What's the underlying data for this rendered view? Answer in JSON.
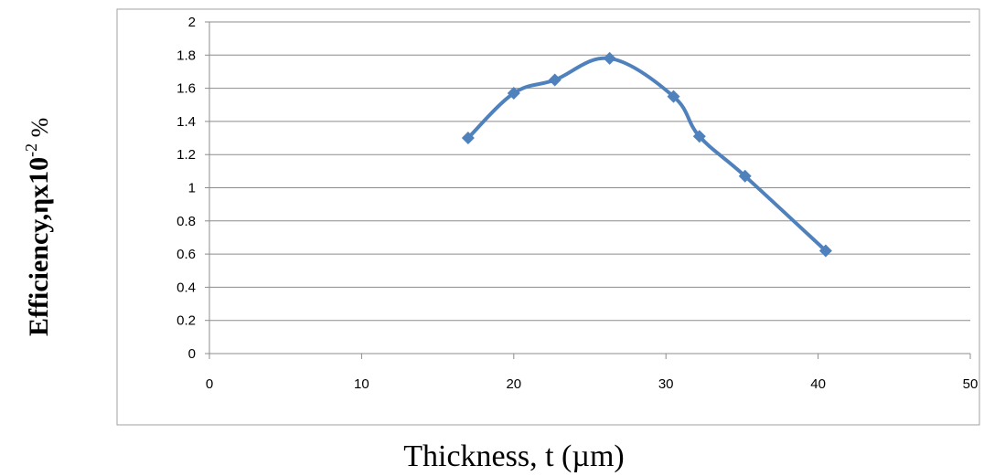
{
  "chart_data": {
    "type": "line",
    "xlabel": "Thickness, t (µm)",
    "ylabel_main": "Efficiency,ηx10",
    "ylabel_exp": "-2",
    "ylabel_unit": " %",
    "xlim": [
      0,
      50
    ],
    "ylim": [
      0,
      2
    ],
    "x_ticks": [
      "0",
      "10",
      "20",
      "30",
      "40",
      "50"
    ],
    "y_ticks": [
      "0",
      "0.2",
      "0.4",
      "0.6",
      "0.8",
      "1",
      "1.2",
      "1.4",
      "1.6",
      "1.8",
      "2"
    ],
    "grid": true,
    "legend": false,
    "series_color": "#4f81bd",
    "series": [
      {
        "x": [
          17,
          20,
          22.7,
          26.3,
          30.5,
          32.2,
          35.2,
          40.5
        ],
        "y": [
          1.3,
          1.57,
          1.65,
          1.78,
          1.55,
          1.31,
          1.07,
          0.62
        ]
      }
    ]
  }
}
